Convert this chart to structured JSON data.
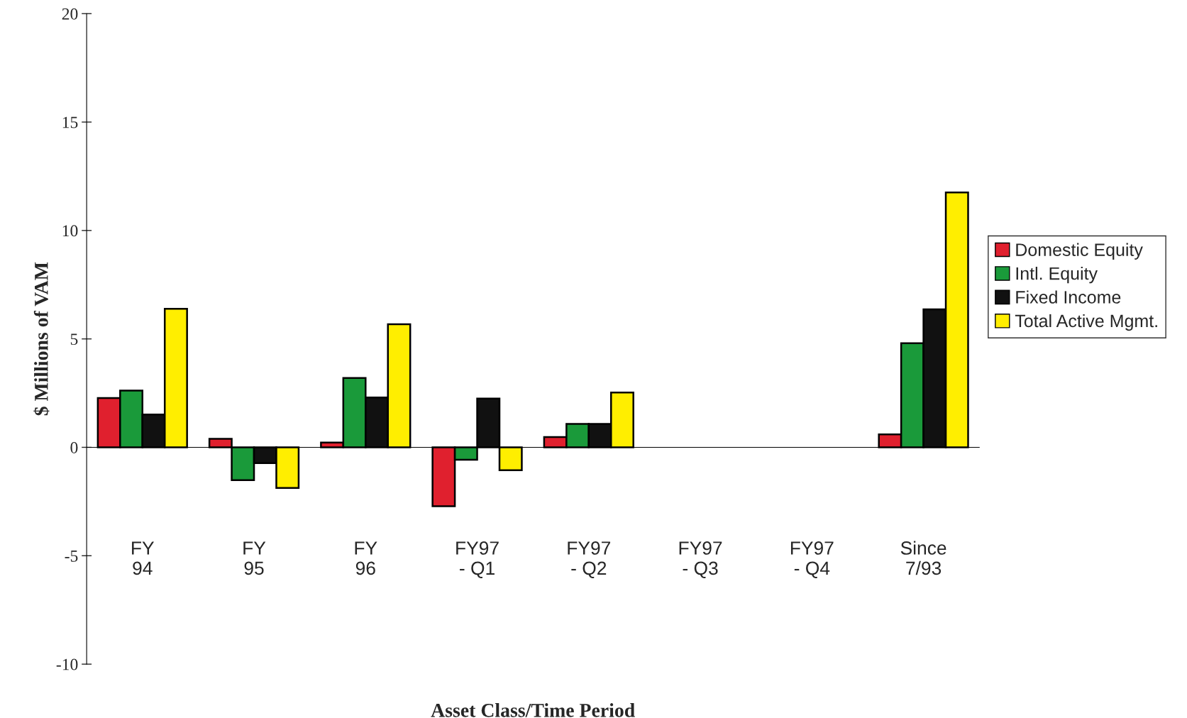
{
  "chart_data": {
    "type": "bar",
    "xlabel": "Asset Class/Time Period",
    "ylabel": "$ Millions of VAM",
    "categories": [
      "FY\n94",
      "FY\n95",
      "FY\n96",
      "FY97\n- Q1",
      "FY97\n- Q2",
      "FY97\n- Q3",
      "FY97\n- Q4",
      "Since\n7/93"
    ],
    "series": [
      {
        "name": "Domestic Equity",
        "color": "#e0202e",
        "values": [
          2.27,
          0.39,
          0.22,
          -2.72,
          0.47,
          null,
          null,
          0.6
        ]
      },
      {
        "name": "Intl. Equity",
        "color": "#1a9a3a",
        "values": [
          2.62,
          -1.51,
          3.2,
          -0.57,
          1.08,
          null,
          null,
          4.8
        ]
      },
      {
        "name": "Fixed Income",
        "color": "#111111",
        "values": [
          1.51,
          -0.73,
          2.3,
          2.25,
          1.08,
          null,
          null,
          6.36
        ]
      },
      {
        "name": "Total Active Mgmt.",
        "color": "#ffee00",
        "values": [
          6.39,
          -1.87,
          5.68,
          -1.06,
          2.53,
          null,
          null,
          11.75
        ]
      }
    ],
    "ylim": [
      -10,
      20
    ],
    "yticks": [
      -10,
      -5,
      0,
      5,
      10,
      15,
      20
    ],
    "legend": "right"
  }
}
